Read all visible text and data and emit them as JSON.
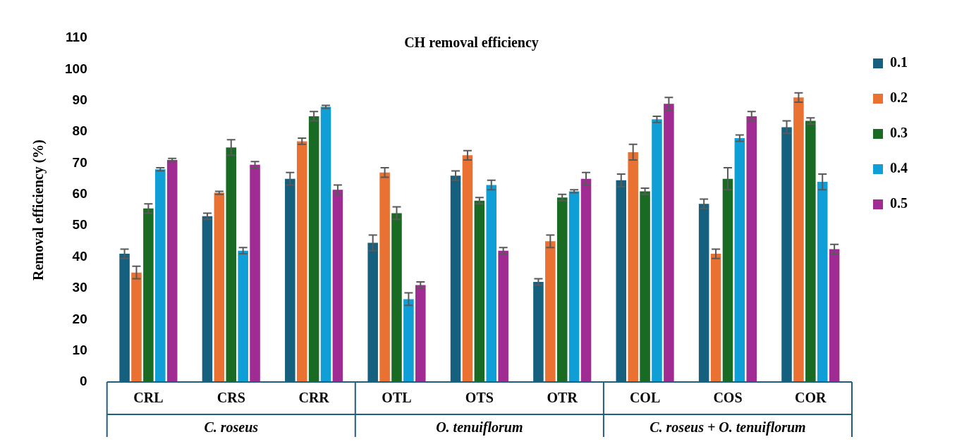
{
  "chart_data": {
    "type": "bar",
    "title": "CH removal efficiency",
    "ylabel": "Removal efficiency (%)",
    "categories": [
      "CRL",
      "CRS",
      "CRR",
      "OTL",
      "OTS",
      "OTR",
      "COL",
      "COS",
      "COR"
    ],
    "series": [
      {
        "name": "0.1",
        "color": "#15607f",
        "values": [
          41,
          53,
          65,
          44.5,
          66,
          32,
          64.5,
          57,
          81.5
        ],
        "errors": [
          1.5,
          1,
          2,
          2.5,
          1.5,
          1,
          2,
          1.5,
          2
        ]
      },
      {
        "name": "0.2",
        "color": "#e97132",
        "values": [
          35,
          60.5,
          77,
          67,
          72.5,
          45,
          73.5,
          41,
          91
        ],
        "errors": [
          2,
          0.5,
          1,
          1.5,
          1.5,
          2,
          2.5,
          1.5,
          1.5
        ]
      },
      {
        "name": "0.3",
        "color": "#196b24",
        "values": [
          55.5,
          75,
          85,
          54,
          58,
          59,
          61,
          65,
          83.5
        ],
        "errors": [
          1.5,
          2.5,
          1.5,
          2,
          1,
          1,
          1,
          3.5,
          1
        ]
      },
      {
        "name": "0.4",
        "color": "#0f9ed5",
        "values": [
          68,
          42,
          88,
          26.5,
          63,
          61,
          84,
          78,
          64
        ],
        "errors": [
          0.5,
          1,
          0.5,
          2,
          1.5,
          0.5,
          1,
          1,
          2.5
        ]
      },
      {
        "name": "0.5",
        "color": "#a02b93",
        "values": [
          71,
          69.5,
          61.5,
          31,
          42,
          65,
          89,
          85,
          42.5
        ],
        "errors": [
          0.5,
          1,
          1.5,
          1,
          1,
          2,
          2,
          1.5,
          1.5
        ]
      }
    ],
    "ylim": [
      0,
      110
    ],
    "yticks": [
      0,
      10,
      20,
      30,
      40,
      50,
      60,
      70,
      80,
      90,
      100,
      110
    ],
    "grid": false,
    "legend": "top right",
    "annotations": [
      "C. roseus",
      "O. tenuiflorum",
      "C. roseus + O. tenuiflorum"
    ]
  }
}
